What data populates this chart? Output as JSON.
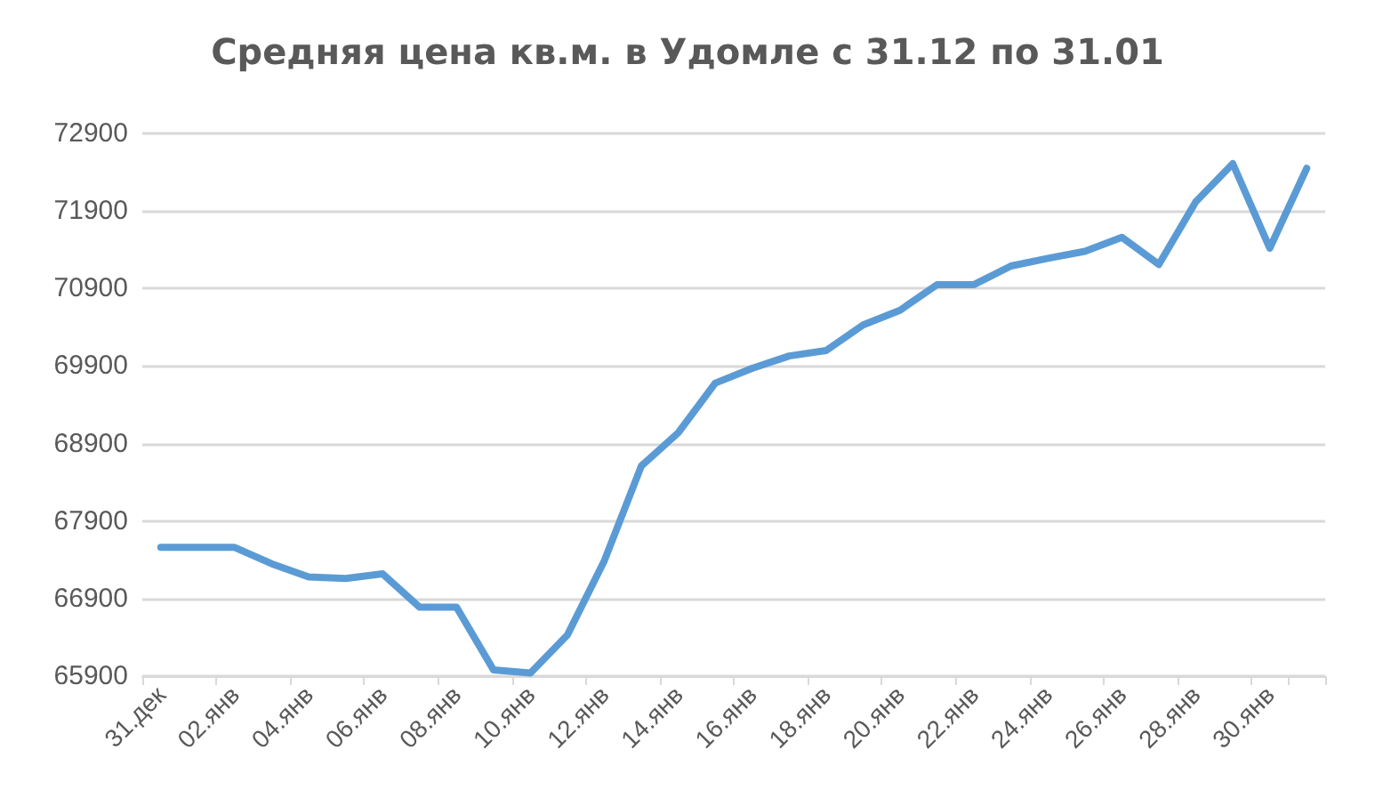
{
  "chart_data": {
    "type": "line",
    "title": "Средняя цена кв.м. в Удомле с 31.12 по 31.01",
    "categories": [
      "31.дек",
      null,
      "02.янв",
      null,
      "04.янв",
      null,
      "06.янв",
      null,
      "08.янв",
      null,
      "10.янв",
      null,
      "12.янв",
      null,
      "14.янв",
      null,
      "16.янв",
      null,
      "18.янв",
      null,
      "20.янв",
      null,
      "22.янв",
      null,
      "24.янв",
      null,
      "26.янв",
      null,
      "28.янв",
      null,
      "30.янв",
      null
    ],
    "series": [
      {
        "color": "#5b9bd5",
        "values": [
          67560,
          67560,
          67560,
          67350,
          67180,
          67160,
          67220,
          66790,
          66790,
          65980,
          65940,
          66430,
          67390,
          68610,
          69040,
          69680,
          69870,
          70030,
          70100,
          70430,
          70620,
          70950,
          70950,
          71190,
          71290,
          71380,
          71560,
          71210,
          72020,
          72510,
          71420,
          72450
        ]
      }
    ],
    "ylim": [
      65900,
      72900
    ],
    "yticks": [
      65900,
      66900,
      67900,
      68900,
      69900,
      70900,
      71900,
      72900
    ],
    "grid": "y",
    "marker": "none",
    "line_style": "solid"
  }
}
